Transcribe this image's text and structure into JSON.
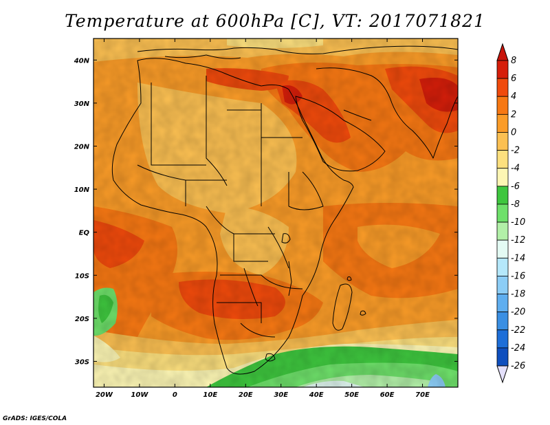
{
  "title": "Temperature at 600hPa [C], VT: 2017071821",
  "credit": "GrADS: IGES/COLA",
  "map": {
    "lon_range": [
      -23,
      80
    ],
    "lat_range": [
      -36,
      45
    ],
    "lat_ticks": [
      {
        "value": 40,
        "label": "40N"
      },
      {
        "value": 30,
        "label": "30N"
      },
      {
        "value": 20,
        "label": "20N"
      },
      {
        "value": 10,
        "label": "10N"
      },
      {
        "value": 0,
        "label": "EQ"
      },
      {
        "value": -10,
        "label": "10S"
      },
      {
        "value": -20,
        "label": "20S"
      },
      {
        "value": -30,
        "label": "30S"
      }
    ],
    "lon_ticks": [
      {
        "value": -20,
        "label": "20W"
      },
      {
        "value": -10,
        "label": "10W"
      },
      {
        "value": 0,
        "label": "0"
      },
      {
        "value": 10,
        "label": "10E"
      },
      {
        "value": 20,
        "label": "20E"
      },
      {
        "value": 30,
        "label": "30E"
      },
      {
        "value": 40,
        "label": "40E"
      },
      {
        "value": 50,
        "label": "50E"
      },
      {
        "value": 60,
        "label": "60E"
      },
      {
        "value": 70,
        "label": "70E"
      }
    ]
  },
  "colorbar": {
    "levels": [
      {
        "label": "8",
        "color": "#d61e0a"
      },
      {
        "label": "6",
        "color": "#f04a0c"
      },
      {
        "label": "4",
        "color": "#f77813"
      },
      {
        "label": "2",
        "color": "#fb9c28"
      },
      {
        "label": "0",
        "color": "#fcc052"
      },
      {
        "label": "-2",
        "color": "#fde07e"
      },
      {
        "label": "-4",
        "color": "#fdf6b4"
      },
      {
        "label": "-6",
        "color": "#3ec63e"
      },
      {
        "label": "-8",
        "color": "#6ee06a"
      },
      {
        "label": "-10",
        "color": "#b2f0a8"
      },
      {
        "label": "-12",
        "color": "#e4fbf4"
      },
      {
        "label": "-14",
        "color": "#b5e8fb"
      },
      {
        "label": "-16",
        "color": "#8ccdf6"
      },
      {
        "label": "-18",
        "color": "#5faeef"
      },
      {
        "label": "-20",
        "color": "#3a8fe3"
      },
      {
        "label": "-22",
        "color": "#1d6ed8"
      },
      {
        "label": "-24",
        "color": "#0f4fbe"
      },
      {
        "label": "-26",
        "color": "#0a2f8a"
      }
    ],
    "top_color": "#c8140a",
    "bottom_color": "#e4e0fb",
    "bottom_fill": "#08205a"
  }
}
